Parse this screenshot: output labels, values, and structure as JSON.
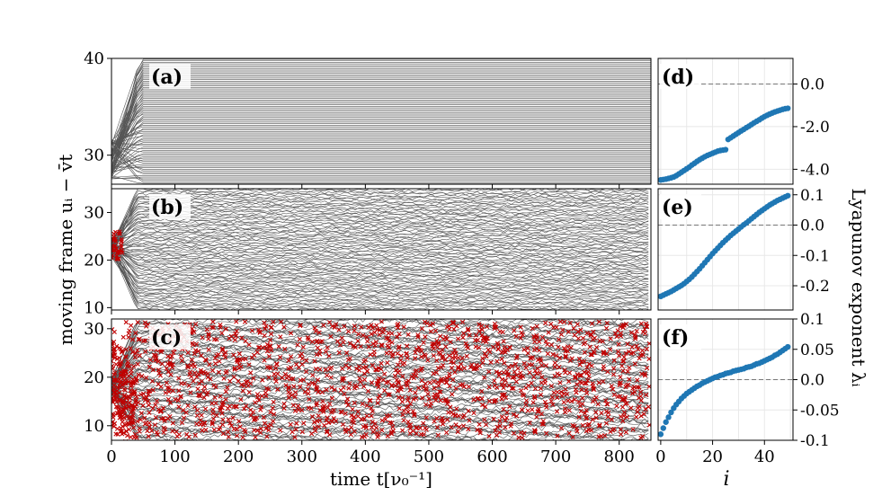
{
  "chart_data": [
    {
      "id": "a",
      "type": "line",
      "panel_label": "(a)",
      "xlim": [
        0,
        850
      ],
      "ylim": [
        27,
        40
      ],
      "xticks": [
        0,
        100,
        200,
        300,
        400,
        500,
        600,
        700,
        800
      ],
      "yticks": [
        30,
        40
      ],
      "ytick_labels": [
        "30",
        "40"
      ],
      "n_trajectories": 80,
      "description_color": "#555555"
    },
    {
      "id": "b",
      "type": "line",
      "panel_label": "(b)",
      "xlim": [
        0,
        850
      ],
      "ylim": [
        9.5,
        35
      ],
      "xticks": [
        0,
        100,
        200,
        300,
        400,
        500,
        600,
        700,
        800
      ],
      "yticks": [
        10,
        20,
        30
      ],
      "ytick_labels": [
        "10",
        "20",
        "30"
      ],
      "n_trajectories": 80
    },
    {
      "id": "c",
      "type": "scatter",
      "panel_label": "(c)",
      "xlim": [
        0,
        850
      ],
      "ylim": [
        7,
        32
      ],
      "xticks": [
        0,
        100,
        200,
        300,
        400,
        500,
        600,
        700,
        800
      ],
      "xtick_labels": [
        "0",
        "100",
        "200",
        "300",
        "400",
        "500",
        "600",
        "700",
        "800"
      ],
      "yticks": [
        10,
        20,
        30
      ],
      "ytick_labels": [
        "10",
        "20",
        "30"
      ],
      "n_trajectories": 80,
      "marker": "x",
      "marker_color": "#c00000",
      "n_markers": 1700
    },
    {
      "id": "d",
      "type": "scatter",
      "panel_label": "(d)",
      "xlim": [
        -1,
        51
      ],
      "ylim": [
        -4.7,
        1.2
      ],
      "yticks": [
        0,
        -2,
        -4
      ],
      "ytick_labels": [
        "0.0",
        "-2.0",
        "-4.0"
      ],
      "reference_line": 0,
      "x": [
        0,
        1,
        2,
        3,
        4,
        5,
        6,
        7,
        8,
        9,
        10,
        11,
        12,
        13,
        14,
        15,
        16,
        17,
        18,
        19,
        20,
        21,
        22,
        23,
        24,
        25,
        26,
        27,
        28,
        29,
        30,
        31,
        32,
        33,
        34,
        35,
        36,
        37,
        38,
        39,
        40,
        41,
        42,
        43,
        44,
        45,
        46,
        47,
        48,
        49
      ],
      "values": [
        -4.5,
        -4.48,
        -4.46,
        -4.43,
        -4.4,
        -4.36,
        -4.3,
        -4.22,
        -4.14,
        -4.06,
        -3.98,
        -3.9,
        -3.8,
        -3.72,
        -3.63,
        -3.55,
        -3.48,
        -3.41,
        -3.35,
        -3.3,
        -3.25,
        -3.2,
        -3.15,
        -3.12,
        -3.1,
        -3.08,
        -2.6,
        -2.52,
        -2.44,
        -2.36,
        -2.28,
        -2.2,
        -2.13,
        -2.05,
        -1.98,
        -1.9,
        -1.82,
        -1.75,
        -1.68,
        -1.6,
        -1.53,
        -1.47,
        -1.41,
        -1.36,
        -1.31,
        -1.27,
        -1.23,
        -1.19,
        -1.16,
        -1.14
      ],
      "point_color": "#1f77b4"
    },
    {
      "id": "e",
      "type": "scatter",
      "panel_label": "(e)",
      "xlim": [
        -1,
        51
      ],
      "ylim": [
        -0.28,
        0.12
      ],
      "yticks": [
        0.1,
        0,
        -0.1,
        -0.2
      ],
      "ytick_labels": [
        "0.1",
        "0.0",
        "-0.1",
        "-0.2"
      ],
      "reference_line": 0,
      "x": [
        0,
        1,
        2,
        3,
        4,
        5,
        6,
        7,
        8,
        9,
        10,
        11,
        12,
        13,
        14,
        15,
        16,
        17,
        18,
        19,
        20,
        21,
        22,
        23,
        24,
        25,
        26,
        27,
        28,
        29,
        30,
        31,
        32,
        33,
        34,
        35,
        36,
        37,
        38,
        39,
        40,
        41,
        42,
        43,
        44,
        45,
        46,
        47,
        48,
        49
      ],
      "values": [
        -0.235,
        -0.231,
        -0.227,
        -0.223,
        -0.219,
        -0.214,
        -0.209,
        -0.204,
        -0.199,
        -0.193,
        -0.186,
        -0.179,
        -0.171,
        -0.162,
        -0.153,
        -0.144,
        -0.134,
        -0.124,
        -0.114,
        -0.104,
        -0.094,
        -0.085,
        -0.076,
        -0.067,
        -0.058,
        -0.05,
        -0.042,
        -0.034,
        -0.027,
        -0.02,
        -0.013,
        -0.006,
        0.001,
        0.007,
        0.014,
        0.021,
        0.028,
        0.035,
        0.042,
        0.048,
        0.054,
        0.06,
        0.066,
        0.071,
        0.076,
        0.081,
        0.085,
        0.089,
        0.093,
        0.097
      ],
      "point_color": "#1f77b4"
    },
    {
      "id": "f",
      "type": "scatter",
      "panel_label": "(f)",
      "xlim": [
        -1,
        51
      ],
      "ylim": [
        -0.1,
        0.1
      ],
      "yticks": [
        0.1,
        0.05,
        0,
        -0.05,
        -0.1
      ],
      "ytick_labels": [
        "0.1",
        "0.05",
        "0.0",
        "-0.05",
        "-0.1"
      ],
      "reference_line": 0,
      "x": [
        0,
        1,
        2,
        3,
        4,
        5,
        6,
        7,
        8,
        9,
        10,
        11,
        12,
        13,
        14,
        15,
        16,
        17,
        18,
        19,
        20,
        21,
        22,
        23,
        24,
        25,
        26,
        27,
        28,
        29,
        30,
        31,
        32,
        33,
        34,
        35,
        36,
        37,
        38,
        39,
        40,
        41,
        42,
        43,
        44,
        45,
        46,
        47,
        48,
        49
      ],
      "values": [
        -0.09,
        -0.08,
        -0.07,
        -0.062,
        -0.054,
        -0.047,
        -0.041,
        -0.036,
        -0.031,
        -0.027,
        -0.023,
        -0.02,
        -0.017,
        -0.014,
        -0.011,
        -0.009,
        -0.006,
        -0.004,
        -0.002,
        0.0,
        0.002,
        0.004,
        0.005,
        0.007,
        0.008,
        0.01,
        0.011,
        0.012,
        0.014,
        0.015,
        0.016,
        0.017,
        0.018,
        0.02,
        0.021,
        0.022,
        0.024,
        0.026,
        0.027,
        0.029,
        0.031,
        0.033,
        0.035,
        0.037,
        0.04,
        0.042,
        0.045,
        0.048,
        0.051,
        0.054
      ],
      "xticks": [
        0,
        20,
        40
      ],
      "xtick_labels": [
        "0",
        "20",
        "40"
      ],
      "point_color": "#1f77b4"
    }
  ],
  "labels": {
    "ylabel_left": "moving frame uᵢ − v̄t",
    "xlabel_left": "time t[ν₀⁻¹]",
    "xlabel_right": "i",
    "ylabel_right": "Lyapunov exponent λᵢ"
  }
}
